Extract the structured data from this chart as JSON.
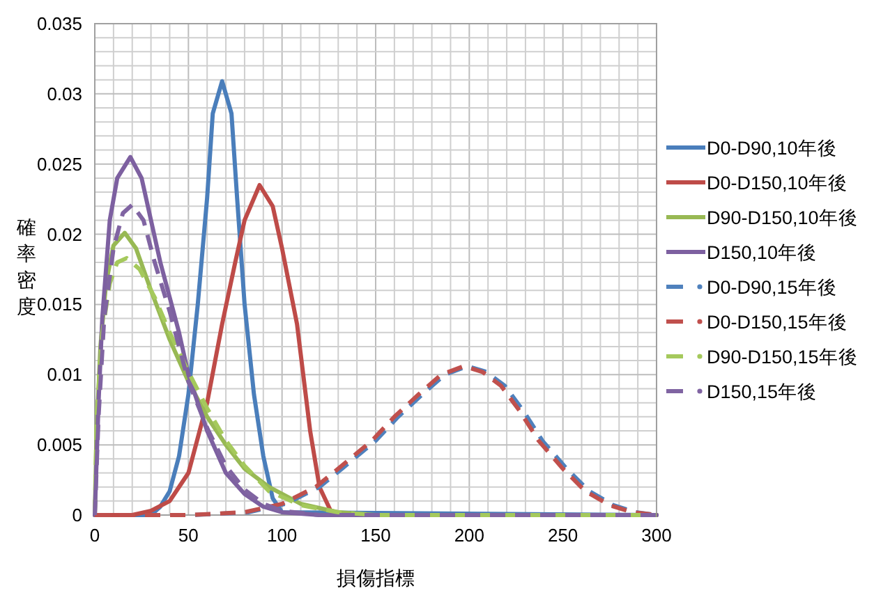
{
  "chart_data": {
    "type": "line",
    "xlabel": "損傷指標",
    "ylabel": "確率密度",
    "xlim": [
      0,
      300
    ],
    "ylim": [
      0,
      0.035
    ],
    "xticks": [
      0,
      {
        "value": 10,
        "label": null
      },
      {
        "value": 20,
        "label": null
      },
      {
        "value": 30,
        "label": null
      },
      {
        "value": 40,
        "label": null
      },
      50,
      {
        "value": 60,
        "label": null
      },
      {
        "value": 70,
        "label": null
      },
      {
        "value": 80,
        "label": null
      },
      {
        "value": 90,
        "label": null
      },
      100,
      {
        "value": 110,
        "label": null
      },
      {
        "value": 120,
        "label": null
      },
      {
        "value": 130,
        "label": null
      },
      {
        "value": 140,
        "label": null
      },
      150,
      {
        "value": 160,
        "label": null
      },
      {
        "value": 170,
        "label": null
      },
      {
        "value": 180,
        "label": null
      },
      {
        "value": 190,
        "label": null
      },
      200,
      {
        "value": 210,
        "label": null
      },
      {
        "value": 220,
        "label": null
      },
      {
        "value": 230,
        "label": null
      },
      {
        "value": 240,
        "label": null
      },
      250,
      {
        "value": 260,
        "label": null
      },
      {
        "value": 270,
        "label": null
      },
      {
        "value": 280,
        "label": null
      },
      {
        "value": 290,
        "label": null
      },
      300
    ],
    "yticks": [
      0,
      {
        "value": 0.001,
        "label": null
      },
      {
        "value": 0.002,
        "label": null
      },
      {
        "value": 0.003,
        "label": null
      },
      {
        "value": 0.004,
        "label": null
      },
      0.005,
      {
        "value": 0.006,
        "label": null
      },
      {
        "value": 0.007,
        "label": null
      },
      {
        "value": 0.008,
        "label": null
      },
      {
        "value": 0.009,
        "label": null
      },
      0.01,
      {
        "value": 0.011,
        "label": null
      },
      {
        "value": 0.012,
        "label": null
      },
      {
        "value": 0.013,
        "label": null
      },
      {
        "value": 0.014,
        "label": null
      },
      0.015,
      {
        "value": 0.016,
        "label": null
      },
      {
        "value": 0.017,
        "label": null
      },
      {
        "value": 0.018,
        "label": null
      },
      {
        "value": 0.019,
        "label": null
      },
      0.02,
      {
        "value": 0.021,
        "label": null
      },
      {
        "value": 0.022,
        "label": null
      },
      {
        "value": 0.023,
        "label": null
      },
      {
        "value": 0.024,
        "label": null
      },
      0.025,
      {
        "value": 0.026,
        "label": null
      },
      {
        "value": 0.027,
        "label": null
      },
      {
        "value": 0.028,
        "label": null
      },
      {
        "value": 0.029,
        "label": null
      },
      0.03,
      {
        "value": 0.031,
        "label": null
      },
      {
        "value": 0.032,
        "label": null
      },
      {
        "value": 0.033,
        "label": null
      },
      {
        "value": 0.034,
        "label": null
      },
      0.035
    ],
    "grid": true,
    "legend": "right",
    "series": [
      {
        "name": "D0-D90,10年後",
        "color": "#4a7ebb",
        "line_style": "solid",
        "x": [
          0,
          30,
          35,
          40,
          45,
          50,
          55,
          60,
          63,
          68,
          73,
          76,
          80,
          85,
          90,
          95,
          100,
          300
        ],
        "values": [
          0,
          0,
          0.0006,
          0.0017,
          0.0042,
          0.0086,
          0.015,
          0.0226,
          0.0286,
          0.0309,
          0.0286,
          0.0226,
          0.015,
          0.0086,
          0.0042,
          0.0012,
          0.0002,
          0
        ]
      },
      {
        "name": "D0-D150,10年後",
        "color": "#be4b48",
        "line_style": "solid",
        "x": [
          0,
          20,
          30,
          40,
          50,
          60,
          68,
          75,
          80,
          88,
          95,
          100,
          108,
          115,
          120,
          126,
          135,
          300
        ],
        "values": [
          0,
          0,
          0.0003,
          0.001,
          0.003,
          0.008,
          0.0136,
          0.018,
          0.021,
          0.0235,
          0.022,
          0.019,
          0.0136,
          0.006,
          0.002,
          0.0003,
          0,
          0
        ]
      },
      {
        "name": "D90-D150,10年後",
        "color": "#98b954",
        "line_style": "solid",
        "x": [
          0,
          1,
          3,
          6,
          10,
          16,
          22,
          30,
          40,
          50,
          60,
          70,
          80,
          93,
          110,
          130,
          150,
          300
        ],
        "values": [
          0,
          0.006,
          0.012,
          0.0165,
          0.0192,
          0.0201,
          0.019,
          0.016,
          0.0125,
          0.0095,
          0.007,
          0.005,
          0.0033,
          0.002,
          0.0008,
          0.0002,
          0,
          0
        ]
      },
      {
        "name": "D150,10年後",
        "color": "#7d60a0",
        "line_style": "solid",
        "x": [
          0,
          2,
          4,
          8,
          12,
          19,
          25,
          30,
          35,
          40,
          45,
          50,
          60,
          70,
          80,
          90,
          100,
          120,
          300
        ],
        "values": [
          0,
          0.008,
          0.014,
          0.021,
          0.024,
          0.0255,
          0.024,
          0.021,
          0.018,
          0.0155,
          0.013,
          0.01,
          0.006,
          0.003,
          0.0015,
          0.0006,
          0.0002,
          0,
          0
        ]
      },
      {
        "name": "D0-D90,15年後",
        "color": "#4f81bd",
        "line_style": "dashed",
        "x": [
          0,
          52,
          82,
          102,
          120,
          132,
          150,
          162,
          175,
          187,
          199,
          209,
          219,
          229,
          239,
          252,
          264,
          277,
          289,
          300
        ],
        "values": [
          0,
          0,
          0.0002,
          0.0008,
          0.002,
          0.0033,
          0.0053,
          0.007,
          0.0086,
          0.01,
          0.0106,
          0.0102,
          0.0092,
          0.0074,
          0.0053,
          0.0033,
          0.0017,
          0.0007,
          0.0002,
          0
        ]
      },
      {
        "name": "D0-D150,15年後",
        "color": "#c0504d",
        "line_style": "dashed",
        "x": [
          0,
          50,
          80,
          100,
          118,
          130,
          148,
          160,
          173,
          185,
          197,
          207,
          217,
          227,
          237,
          250,
          262,
          275,
          287,
          300
        ],
        "values": [
          0,
          0,
          0.0002,
          0.0008,
          0.002,
          0.0033,
          0.0053,
          0.007,
          0.0086,
          0.01,
          0.0106,
          0.0102,
          0.0092,
          0.0074,
          0.0053,
          0.0033,
          0.0017,
          0.0007,
          0.0002,
          0
        ]
      },
      {
        "name": "D90-D150,15年後",
        "color": "#a5c95c",
        "line_style": "dashed",
        "x": [
          0,
          1,
          4,
          8,
          12,
          17,
          24,
          32,
          40,
          50,
          60,
          70,
          80,
          93,
          110,
          130,
          150,
          300
        ],
        "values": [
          0,
          0.007,
          0.013,
          0.0165,
          0.018,
          0.0183,
          0.0175,
          0.0155,
          0.013,
          0.0102,
          0.0076,
          0.0053,
          0.0035,
          0.0017,
          0.0007,
          0.0002,
          0,
          0
        ]
      },
      {
        "name": "D150,15年後",
        "color": "#8064a2",
        "line_style": "dashed",
        "x": [
          0,
          2,
          5,
          10,
          15,
          20,
          26,
          32,
          40,
          50,
          60,
          70,
          80,
          90,
          100,
          120,
          300
        ],
        "values": [
          0,
          0.007,
          0.014,
          0.019,
          0.0215,
          0.0221,
          0.021,
          0.018,
          0.0145,
          0.0095,
          0.0062,
          0.0035,
          0.0018,
          0.0008,
          0.0003,
          0,
          0
        ]
      }
    ]
  }
}
